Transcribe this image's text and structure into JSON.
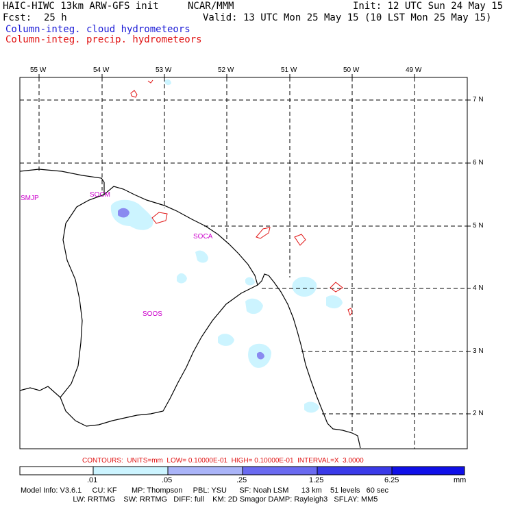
{
  "header": {
    "model_title": "HAIC-HIWC 13km ARW-GFS init",
    "org": "NCAR/MMM",
    "init": "Init: 12 UTC Sun 24 May 15",
    "fcst_label": "Fcst:",
    "fcst_value": "25 h",
    "valid": "Valid: 13 UTC Mon 25 May 15 (10 LST Mon 25 May 15)",
    "field_cloud": "Column-integ. cloud hydrometeors",
    "field_precip": "Column-integ. precip. hydrometeors"
  },
  "map": {
    "lon_labels": [
      "55 W",
      "54 W",
      "53 W",
      "52 W",
      "51 W",
      "50 W",
      "49 W"
    ],
    "lat_labels": [
      "7 N",
      "6 N",
      "5 N",
      "4 N",
      "3 N",
      "2 N"
    ],
    "stations": [
      "SMJP",
      "SOCM",
      "SOCA",
      "SOOS"
    ]
  },
  "contours_line": "CONTOURS:  UNITS=mm  LOW= 0.10000E-01  HIGH= 0.10000E-01  INTERVAL=X  3.0000",
  "colorbar": {
    "labels": [
      ".01",
      ".05",
      ".25",
      "1.25",
      "6.25"
    ],
    "units": "mm",
    "colors": [
      "#ffffff",
      "#ccf4ff",
      "#aab4f8",
      "#6a6af0",
      "#3a3ae8",
      "#1010e8"
    ]
  },
  "model_info": {
    "line1": "Model Info: V3.6.1     CU: KF       MP: Thompson     PBL: YSU      SF: Noah LSM      13 km    51 levels   60 sec",
    "line2": "                         LW: RRTMG    SW: RRTMG   DIFF: full    KM: 2D Smagor DAMP: Rayleigh3   SFLAY: MM5"
  }
}
